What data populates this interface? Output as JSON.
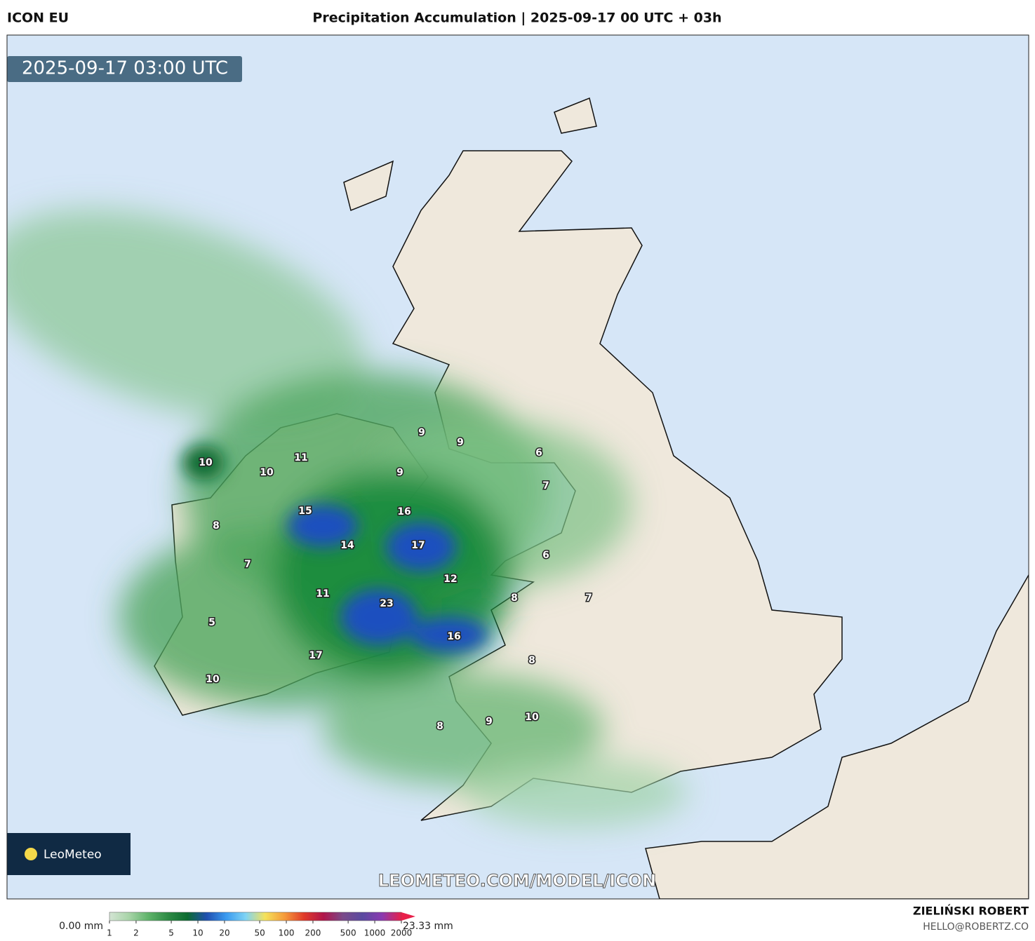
{
  "header": {
    "model": "ICON EU",
    "title": "Precipitation Accumulation | 2025-09-17 00 UTC + 03h",
    "valid_time": "2025-09-17 03:00 UTC"
  },
  "map": {
    "labels": [
      10,
      10,
      11,
      9,
      9,
      6,
      9,
      7,
      8,
      15,
      16,
      17,
      14,
      7,
      6,
      12,
      11,
      8,
      7,
      23,
      5,
      16,
      17,
      8,
      10,
      8,
      9,
      10
    ],
    "watermark": "LEOMETEO.COM/MODEL/ICON",
    "logo": "LeoMeteo"
  },
  "colorbar": {
    "min_label": "0.00 mm",
    "max_label": "23.33 mm",
    "log": true,
    "ticks": [
      1,
      2,
      5,
      10,
      20,
      50,
      100,
      200,
      500,
      1000,
      2000
    ],
    "colors": [
      "#d4e4d4",
      "#a8d4a8",
      "#5fb36a",
      "#2e8b45",
      "#0c6b30",
      "#1f4fb0",
      "#3a9af0",
      "#7fd4f5",
      "#f5e25a",
      "#f59a3a",
      "#e03a2a",
      "#b0154a",
      "#7a4a8a",
      "#5a4aa0",
      "#8a3ab0",
      "#e8204a"
    ]
  },
  "credits": {
    "author": "ZIELIŃSKI ROBERT",
    "email": "HELLO@ROBERTZ.CO"
  }
}
